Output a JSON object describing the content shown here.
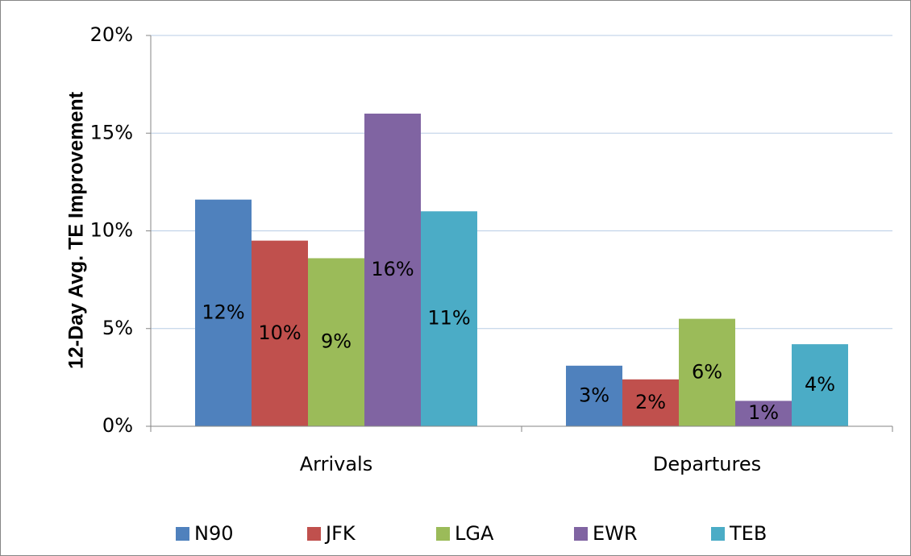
{
  "chart_data": {
    "type": "bar",
    "y_axis_label": "12-Day Avg. TE Improvement",
    "categories": [
      "Arrivals",
      "Departures"
    ],
    "series": [
      {
        "name": "N90",
        "color": "#4f81bd",
        "values": [
          11.6,
          3.1
        ],
        "value_labels": [
          "12%",
          "3%"
        ]
      },
      {
        "name": "JFK",
        "color": "#c0504d",
        "values": [
          9.5,
          2.4
        ],
        "value_labels": [
          "10%",
          "2%"
        ]
      },
      {
        "name": "LGA",
        "color": "#9bbb59",
        "values": [
          8.6,
          5.5
        ],
        "value_labels": [
          "9%",
          "6%"
        ]
      },
      {
        "name": "EWR",
        "color": "#8064a2",
        "values": [
          16.0,
          1.3
        ],
        "value_labels": [
          "16%",
          "1%"
        ]
      },
      {
        "name": "TEB",
        "color": "#4bacc6",
        "values": [
          11.0,
          4.2
        ],
        "value_labels": [
          "11%",
          "4%"
        ]
      }
    ],
    "ylim": [
      0,
      20
    ],
    "yticks": [
      {
        "value": 0,
        "label": "0%"
      },
      {
        "value": 5,
        "label": "5%"
      },
      {
        "value": 10,
        "label": "10%"
      },
      {
        "value": 15,
        "label": "15%"
      },
      {
        "value": 20,
        "label": "20%"
      }
    ],
    "grid": true,
    "legend": "bottom"
  }
}
